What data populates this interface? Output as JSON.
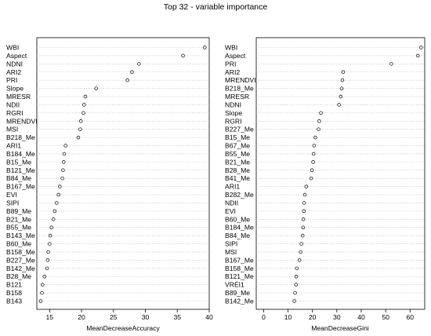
{
  "chart_data": [
    {
      "type": "scatter",
      "title": "Top 32 - variable importance",
      "xlabel": "MeanDecreaseAccuracy",
      "xlim": [
        13,
        40
      ],
      "xticks": [
        15,
        20,
        25,
        30,
        35,
        40
      ],
      "categories": [
        "WBI",
        "Aspect",
        "NDNI",
        "ARI2",
        "PRI",
        "Slope",
        "MRESR",
        "NDII",
        "RGRI",
        "MRENDVI",
        "MSI",
        "B218_Me",
        "ARI1",
        "B184_Me",
        "B15_Me",
        "B121_Me",
        "B84_Me",
        "B167_Me",
        "EVI",
        "SIPI",
        "B89_Me",
        "B21_Me",
        "B55_Me",
        "B143_Me",
        "B60_Me",
        "B158_Me",
        "B227_Me",
        "B142_Me",
        "B28_Me",
        "B121",
        "B158",
        "B143"
      ],
      "values": [
        39.3,
        35.9,
        29.0,
        27.9,
        27.2,
        22.3,
        20.6,
        20.4,
        20.3,
        19.9,
        19.8,
        19.5,
        17.5,
        17.3,
        17.2,
        17.1,
        17.0,
        16.6,
        16.4,
        16.1,
        15.8,
        15.6,
        15.3,
        15.1,
        15.0,
        14.8,
        14.7,
        14.6,
        14.2,
        13.9,
        13.8,
        13.6
      ]
    },
    {
      "type": "scatter",
      "xlabel": "MeanDecreaseGini",
      "xlim": [
        -3,
        66
      ],
      "xticks": [
        0,
        10,
        20,
        30,
        40,
        50,
        60
      ],
      "categories": [
        "WBI",
        "Aspect",
        "PRI",
        "ARI2",
        "MRENDVI",
        "B218_Me",
        "MRESR",
        "NDNI",
        "Slope",
        "RGRI",
        "B227_Me",
        "B15_Me",
        "B67_Me",
        "B55_Me",
        "B21_Me",
        "B28_Me",
        "B41_Me",
        "ARI1",
        "B282_Me",
        "NDII",
        "EVI",
        "B60_Me",
        "B184_Me",
        "B84_Me",
        "SIPI",
        "MSI",
        "B167_Me",
        "B158_Me",
        "B121_Me",
        "VREI1",
        "B89_Me",
        "B142_Me"
      ],
      "values": [
        64.5,
        63.2,
        52.3,
        32.6,
        32.3,
        32.0,
        31.6,
        30.9,
        23.5,
        22.8,
        22.5,
        21.2,
        20.7,
        20.5,
        20.3,
        19.8,
        19.5,
        17.5,
        16.9,
        16.6,
        16.5,
        16.3,
        16.2,
        16.0,
        15.5,
        15.2,
        14.7,
        13.6,
        13.4,
        13.3,
        12.9,
        12.6
      ]
    }
  ]
}
